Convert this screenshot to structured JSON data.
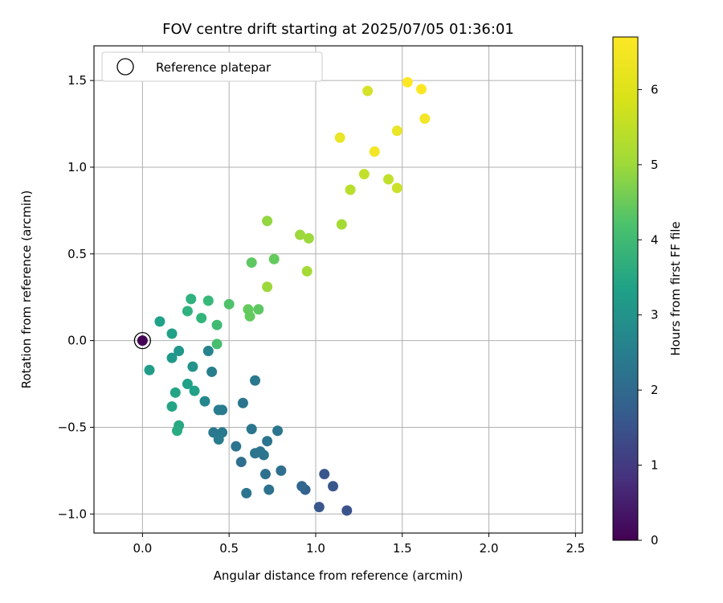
{
  "chart_data": {
    "type": "scatter",
    "title": "FOV centre drift starting at 2025/07/05 01:36:01",
    "xlabel": "Angular distance from reference (arcmin)",
    "ylabel": "Rotation from reference (arcmin)",
    "xlim": [
      -0.28,
      2.54
    ],
    "ylim": [
      -1.11,
      1.7
    ],
    "x_ticks": [
      "0.0",
      "0.5",
      "1.0",
      "1.5",
      "2.0",
      "2.5"
    ],
    "y_ticks": [
      "−1.0",
      "−0.5",
      "0.0",
      "0.5",
      "1.0",
      "1.5"
    ],
    "grid": true,
    "legend": {
      "placement": "top-left",
      "entries": [
        "Reference platepar"
      ]
    },
    "colorbar": {
      "label": "Hours from first FF file",
      "range": [
        0,
        6.7
      ],
      "ticks": [
        "0",
        "1",
        "2",
        "3",
        "4",
        "5",
        "6"
      ],
      "colormap": "viridis"
    },
    "reference_point": {
      "x": 0.0,
      "y": 0.0
    },
    "points": [
      {
        "x": 0.0,
        "y": 0.0,
        "h": 0.0
      },
      {
        "x": 1.18,
        "y": -0.98,
        "h": 1.7
      },
      {
        "x": 1.02,
        "y": -0.96,
        "h": 1.8
      },
      {
        "x": 1.1,
        "y": -0.84,
        "h": 1.8
      },
      {
        "x": 1.05,
        "y": -0.77,
        "h": 1.8
      },
      {
        "x": 0.94,
        "y": -0.86,
        "h": 2.1
      },
      {
        "x": 0.92,
        "y": -0.84,
        "h": 2.2
      },
      {
        "x": 0.8,
        "y": -0.75,
        "h": 2.4
      },
      {
        "x": 0.73,
        "y": -0.86,
        "h": 2.5
      },
      {
        "x": 0.71,
        "y": -0.77,
        "h": 2.5
      },
      {
        "x": 0.6,
        "y": -0.88,
        "h": 2.6
      },
      {
        "x": 0.57,
        "y": -0.7,
        "h": 2.4
      },
      {
        "x": 0.54,
        "y": -0.61,
        "h": 2.6
      },
      {
        "x": 0.65,
        "y": -0.65,
        "h": 2.6
      },
      {
        "x": 0.68,
        "y": -0.64,
        "h": 2.6
      },
      {
        "x": 0.7,
        "y": -0.66,
        "h": 2.6
      },
      {
        "x": 0.72,
        "y": -0.58,
        "h": 2.6
      },
      {
        "x": 0.78,
        "y": -0.52,
        "h": 2.6
      },
      {
        "x": 0.63,
        "y": -0.51,
        "h": 2.6
      },
      {
        "x": 0.58,
        "y": -0.36,
        "h": 2.6
      },
      {
        "x": 0.65,
        "y": -0.23,
        "h": 2.7
      },
      {
        "x": 0.46,
        "y": -0.53,
        "h": 2.7
      },
      {
        "x": 0.41,
        "y": -0.53,
        "h": 2.7
      },
      {
        "x": 0.44,
        "y": -0.57,
        "h": 2.8
      },
      {
        "x": 0.44,
        "y": -0.4,
        "h": 2.8
      },
      {
        "x": 0.46,
        "y": -0.4,
        "h": 2.8
      },
      {
        "x": 0.4,
        "y": -0.18,
        "h": 2.9
      },
      {
        "x": 0.38,
        "y": -0.06,
        "h": 3.0
      },
      {
        "x": 0.36,
        "y": -0.35,
        "h": 3.1
      },
      {
        "x": 0.29,
        "y": -0.15,
        "h": 3.4
      },
      {
        "x": 0.21,
        "y": -0.06,
        "h": 3.5
      },
      {
        "x": 0.17,
        "y": -0.1,
        "h": 3.6
      },
      {
        "x": 0.04,
        "y": -0.17,
        "h": 3.7
      },
      {
        "x": 0.3,
        "y": -0.29,
        "h": 3.8
      },
      {
        "x": 0.26,
        "y": -0.25,
        "h": 3.8
      },
      {
        "x": 0.19,
        "y": -0.3,
        "h": 3.9
      },
      {
        "x": 0.17,
        "y": -0.38,
        "h": 3.9
      },
      {
        "x": 0.21,
        "y": -0.49,
        "h": 4.0
      },
      {
        "x": 0.2,
        "y": -0.52,
        "h": 4.1
      },
      {
        "x": 0.1,
        "y": 0.11,
        "h": 3.8
      },
      {
        "x": 0.17,
        "y": 0.04,
        "h": 3.8
      },
      {
        "x": 0.26,
        "y": 0.17,
        "h": 4.3
      },
      {
        "x": 0.28,
        "y": 0.24,
        "h": 4.3
      },
      {
        "x": 0.34,
        "y": 0.13,
        "h": 4.4
      },
      {
        "x": 0.38,
        "y": 0.23,
        "h": 4.5
      },
      {
        "x": 0.43,
        "y": 0.09,
        "h": 4.6
      },
      {
        "x": 0.43,
        "y": -0.02,
        "h": 4.7
      },
      {
        "x": 0.5,
        "y": 0.21,
        "h": 4.8
      },
      {
        "x": 0.61,
        "y": 0.18,
        "h": 5.1
      },
      {
        "x": 0.62,
        "y": 0.14,
        "h": 5.1
      },
      {
        "x": 0.67,
        "y": 0.18,
        "h": 5.0
      },
      {
        "x": 0.63,
        "y": 0.45,
        "h": 5.0
      },
      {
        "x": 0.76,
        "y": 0.47,
        "h": 5.1
      },
      {
        "x": 0.72,
        "y": 0.31,
        "h": 5.7
      },
      {
        "x": 0.72,
        "y": 0.69,
        "h": 5.6
      },
      {
        "x": 0.91,
        "y": 0.61,
        "h": 5.7
      },
      {
        "x": 0.96,
        "y": 0.59,
        "h": 5.7
      },
      {
        "x": 0.95,
        "y": 0.4,
        "h": 5.8
      },
      {
        "x": 1.15,
        "y": 0.67,
        "h": 5.8
      },
      {
        "x": 1.2,
        "y": 0.87,
        "h": 6.0
      },
      {
        "x": 1.28,
        "y": 0.96,
        "h": 6.1
      },
      {
        "x": 1.42,
        "y": 0.93,
        "h": 6.1
      },
      {
        "x": 1.47,
        "y": 0.88,
        "h": 6.2
      },
      {
        "x": 1.14,
        "y": 1.17,
        "h": 6.5
      },
      {
        "x": 1.34,
        "y": 1.09,
        "h": 6.6
      },
      {
        "x": 1.47,
        "y": 1.21,
        "h": 6.5
      },
      {
        "x": 1.3,
        "y": 1.44,
        "h": 6.3
      },
      {
        "x": 1.53,
        "y": 1.49,
        "h": 6.7
      },
      {
        "x": 1.61,
        "y": 1.45,
        "h": 6.7
      },
      {
        "x": 1.63,
        "y": 1.28,
        "h": 6.6
      }
    ]
  }
}
